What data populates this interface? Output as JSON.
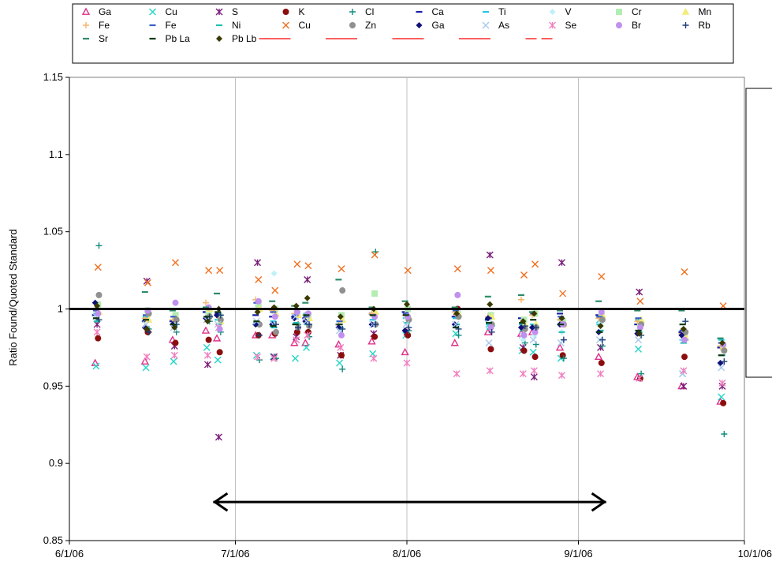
{
  "chart_data": {
    "type": "scatter",
    "title": "",
    "xlabel": "",
    "ylabel": "Ratio Found/Quoted Standard",
    "ylim": [
      0.85,
      1.15
    ],
    "yticks": [
      0.85,
      0.9,
      0.95,
      1,
      1.05,
      1.1,
      1.15
    ],
    "ytick_labels": [
      "0.85",
      "0.9",
      "0.95",
      "1",
      "1.05",
      "1.1",
      "1.15"
    ],
    "xlim": [
      "2006-06-01",
      "2006-10-01"
    ],
    "xticks": [
      "2006-06-01",
      "2006-07-01",
      "2006-08-01",
      "2006-09-01",
      "2006-10-01"
    ],
    "xtick_labels": [
      "6/1/06",
      "7/1/06",
      "8/1/06",
      "9/1/06",
      "10/1/06"
    ],
    "grid": "vertical",
    "legend_position": "top",
    "reference_line": {
      "y": 1.0,
      "color": "#000000"
    },
    "period_arrow": {
      "from": "2006-06-27",
      "to": "2006-09-06",
      "y": 0.875
    },
    "dates": [
      "2006-06-06",
      "2006-06-15",
      "2006-06-20",
      "2006-06-26",
      "2006-06-28",
      "2006-07-05",
      "2006-07-08",
      "2006-07-12",
      "2006-07-14",
      "2006-07-20",
      "2006-07-26",
      "2006-08-01",
      "2006-08-10",
      "2006-08-16",
      "2006-08-22",
      "2006-08-24",
      "2006-08-29",
      "2006-09-05",
      "2006-09-12",
      "2006-09-20",
      "2006-09-27"
    ],
    "series": [
      {
        "name": "Ga",
        "marker": "triangle",
        "color": "#e0308a",
        "values": [
          0.965,
          0.966,
          0.98,
          0.986,
          0.981,
          0.983,
          0.983,
          0.978,
          0.978,
          0.977,
          0.979,
          0.972,
          0.978,
          0.985,
          0.984,
          0.985,
          0.975,
          0.969,
          0.956,
          0.95,
          0.94
        ]
      },
      {
        "name": "Cu",
        "marker": "x",
        "color": "#22d6c8",
        "values": [
          0.963,
          0.962,
          0.966,
          0.975,
          0.967,
          0.97,
          0.969,
          0.968,
          0.975,
          0.965,
          0.971,
          0.983,
          0.984,
          0.99,
          0.973,
          0.972,
          0.968,
          0.993,
          0.974,
          0.958,
          0.943
        ]
      },
      {
        "name": "S",
        "marker": "asterisk",
        "color": "#7b1f7b",
        "values": [
          0.99,
          1.018,
          0.976,
          0.964,
          0.917,
          1.03,
          0.969,
          0.982,
          1.019,
          0.97,
          0.984,
          0.985,
          0.998,
          1.035,
          0.975,
          0.956,
          1.03,
          0.975,
          1.011,
          0.95,
          0.95
        ]
      },
      {
        "name": "K",
        "marker": "dot",
        "color": "#8b0d0d",
        "values": [
          0.981,
          0.985,
          0.978,
          0.98,
          0.972,
          0.983,
          0.984,
          0.985,
          0.985,
          0.97,
          0.982,
          0.983,
          1.0,
          0.974,
          0.973,
          0.969,
          0.97,
          0.965,
          0.955,
          0.969,
          0.939
        ]
      },
      {
        "name": "Cl",
        "marker": "plus",
        "color": "#138a7e",
        "values": [
          1.041,
          0.987,
          0.985,
          0.992,
          0.985,
          0.967,
          0.968,
          0.99,
          0.982,
          0.961,
          1.037,
          0.986,
          0.983,
          0.989,
          0.978,
          0.977,
          0.968,
          0.976,
          0.958,
          0.98,
          0.919
        ]
      },
      {
        "name": "Ca",
        "marker": "dash",
        "color": "#1420a8",
        "values": [
          0.996,
          0.992,
          0.992,
          0.998,
          1.0,
          0.996,
          0.995,
          0.995,
          0.994,
          0.99,
          0.997,
          0.998,
          0.995,
          0.993,
          0.994,
          1.0,
          0.997,
          0.996,
          0.99,
          0.985,
          0.975
        ]
      },
      {
        "name": "Ti",
        "marker": "dash",
        "color": "#22c8e0",
        "values": [
          0.997,
          0.995,
          0.99,
          0.994,
          0.993,
          0.991,
          0.992,
          0.994,
          0.997,
          0.992,
          0.993,
          0.994,
          0.994,
          0.99,
          0.99,
          0.99,
          0.993,
          0.99,
          0.993,
          0.98,
          0.98
        ]
      },
      {
        "name": "V",
        "marker": "diamond",
        "color": "#c2f0f8",
        "values": [
          1.0,
          0.998,
          0.995,
          0.997,
          0.995,
          1.002,
          1.023,
          0.995,
          0.994,
          0.987,
          0.996,
          0.994,
          0.999,
          0.994,
          0.98,
          0.983,
          0.985,
          0.991,
          0.986,
          0.98,
          0.976
        ]
      },
      {
        "name": "Cr",
        "marker": "square",
        "color": "#b4ecb4",
        "values": [
          1.003,
          0.999,
          0.996,
          0.998,
          0.995,
          1.003,
          1.0,
          0.997,
          0.996,
          0.996,
          1.01,
          1.0,
          0.998,
          0.996,
          0.993,
          0.997,
          0.992,
          0.995,
          0.99,
          0.983,
          0.975
        ]
      },
      {
        "name": "Mn",
        "marker": "triangle-fill",
        "color": "#f4ec78",
        "values": [
          0.998,
          0.993,
          0.994,
          1.0,
          0.992,
          1.0,
          0.997,
          0.996,
          0.994,
          0.993,
          0.998,
          0.995,
          0.997,
          0.995,
          0.99,
          0.99,
          0.99,
          0.996,
          0.993,
          0.982,
          0.975
        ]
      },
      {
        "name": "Fe",
        "marker": "plus",
        "color": "#f8b468",
        "values": [
          1.0,
          0.994,
          0.993,
          1.004,
          0.996,
          1.006,
          0.999,
          0.997,
          0.996,
          0.99,
          0.997,
          0.996,
          0.998,
          0.995,
          1.006,
          0.996,
          0.993,
          0.994,
          0.992,
          0.984,
          0.976
        ]
      },
      {
        "name": "Fe",
        "marker": "dash",
        "color": "#3a5ec8",
        "values": [
          0.999,
          0.996,
          0.995,
          1.001,
          0.997,
          1.004,
          0.998,
          0.996,
          0.995,
          0.992,
          1.0,
          0.997,
          0.999,
          0.994,
          1.0,
          0.997,
          0.995,
          0.995,
          0.994,
          0.986,
          0.978
        ]
      },
      {
        "name": "Ni",
        "marker": "dash",
        "color": "#22c0b0",
        "values": [
          0.992,
          0.988,
          0.989,
          0.993,
          0.99,
          0.989,
          0.988,
          0.991,
          0.99,
          0.988,
          0.99,
          0.991,
          0.99,
          0.987,
          0.986,
          0.988,
          0.985,
          0.986,
          0.985,
          0.978,
          0.97
        ]
      },
      {
        "name": "Cu",
        "marker": "x",
        "color": "#f07020",
        "values": [
          1.027,
          1.017,
          1.03,
          1.025,
          1.025,
          1.019,
          1.012,
          1.029,
          1.028,
          1.026,
          1.035,
          1.025,
          1.026,
          1.025,
          1.022,
          1.029,
          1.01,
          1.021,
          1.005,
          1.024,
          1.002
        ]
      },
      {
        "name": "Zn",
        "marker": "dot",
        "color": "#909090",
        "values": [
          1.009,
          0.997,
          0.993,
          0.995,
          0.993,
          0.99,
          0.985,
          0.988,
          0.989,
          1.012,
          0.99,
          0.993,
          0.995,
          0.99,
          0.987,
          0.988,
          0.99,
          0.993,
          0.99,
          0.985,
          0.973
        ]
      },
      {
        "name": "Ga",
        "marker": "diamond",
        "color": "#101078",
        "values": [
          1.004,
          0.988,
          0.99,
          0.994,
          0.996,
          0.99,
          0.99,
          0.994,
          0.992,
          0.988,
          0.99,
          0.986,
          0.99,
          0.994,
          0.988,
          0.988,
          0.99,
          0.985,
          0.984,
          0.983,
          0.965
        ]
      },
      {
        "name": "As",
        "marker": "x",
        "color": "#a8c8ec",
        "values": [
          0.995,
          0.99,
          0.988,
          0.993,
          0.99,
          0.992,
          0.99,
          0.995,
          0.992,
          0.986,
          0.99,
          0.99,
          0.99,
          0.978,
          0.983,
          0.98,
          0.978,
          0.98,
          0.98,
          0.958,
          0.962
        ]
      },
      {
        "name": "Se",
        "marker": "asterisk",
        "color": "#f080c0",
        "values": [
          0.985,
          0.969,
          0.97,
          0.97,
          0.988,
          0.969,
          0.968,
          0.98,
          0.983,
          0.975,
          0.968,
          0.965,
          0.958,
          0.96,
          0.958,
          0.96,
          0.957,
          0.958,
          0.955,
          0.96,
          0.952
        ]
      },
      {
        "name": "Br",
        "marker": "dot",
        "color": "#c090ee",
        "values": [
          0.997,
          0.999,
          1.004,
          1.001,
          0.987,
          1.005,
          0.995,
          0.998,
          0.997,
          0.983,
          0.995,
          0.995,
          1.009,
          0.988,
          0.983,
          0.985,
          0.99,
          0.998,
          0.988,
          0.98,
          0.977
        ]
      },
      {
        "name": "Rb",
        "marker": "plus",
        "color": "#1a3c78",
        "values": [
          0.993,
          0.985,
          0.99,
          0.995,
          0.996,
          0.983,
          0.99,
          0.988,
          0.99,
          0.987,
          0.99,
          0.988,
          0.987,
          0.985,
          0.989,
          0.988,
          0.98,
          0.98,
          0.983,
          0.992,
          0.966
        ]
      },
      {
        "name": "Sr",
        "marker": "dash",
        "color": "#2c8c68",
        "values": [
          1.0,
          1.011,
          0.999,
          1.001,
          1.01,
          1.0,
          1.005,
          1.002,
          1.004,
          1.019,
          1.001,
          1.005,
          1.001,
          1.008,
          1.009,
          0.998,
          0.999,
          1.005,
          0.999,
          0.999,
          0.981
        ]
      },
      {
        "name": "Pb La",
        "marker": "dash",
        "color": "#0a3a10",
        "values": [
          0.994,
          0.993,
          0.99,
          0.995,
          0.998,
          0.992,
          0.989,
          0.99,
          0.996,
          0.99,
          0.996,
          0.996,
          0.988,
          0.991,
          0.991,
          0.993,
          0.99,
          0.985,
          0.986,
          0.99,
          0.97
        ]
      },
      {
        "name": "Pb Lb",
        "marker": "diamond",
        "color": "#3a3a00",
        "values": [
          1.002,
          0.987,
          0.988,
          0.992,
          1.0,
          0.998,
          1.001,
          1.002,
          1.007,
          0.995,
          1.0,
          1.003,
          0.997,
          1.003,
          0.992,
          0.997,
          0.994,
          0.989,
          0.984,
          0.987,
          0.978
        ]
      }
    ],
    "legend_extra": [
      {
        "style": "solid",
        "color": "#ff0000"
      },
      {
        "style": "solid",
        "color": "#ff0000"
      },
      {
        "style": "solid",
        "color": "#ff0000"
      },
      {
        "style": "solid",
        "color": "#ff0000"
      },
      {
        "style": "dashed",
        "color": "#ff0000"
      }
    ]
  }
}
